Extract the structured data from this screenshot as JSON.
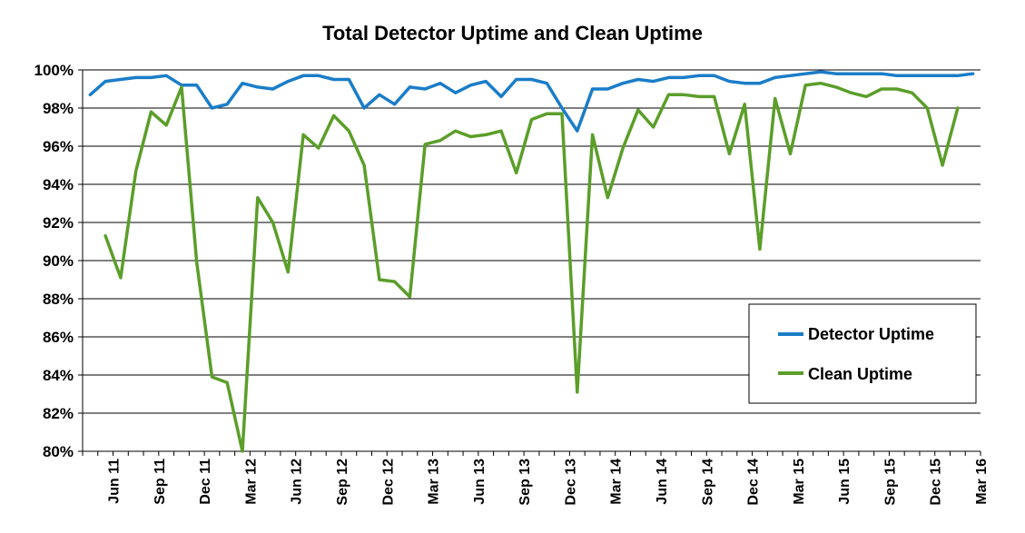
{
  "chart_data": {
    "type": "line",
    "title": "Total Detector Uptime and Clean Uptime",
    "xlabel": "",
    "ylabel": "",
    "ylim": [
      80,
      100
    ],
    "y_ticks": [
      "100%",
      "98%",
      "96%",
      "94%",
      "92%",
      "90%",
      "88%",
      "86%",
      "84%",
      "82%",
      "80%"
    ],
    "x_tick_labels": [
      "Jun 11",
      "Sep 11",
      "Dec 11",
      "Mar 12",
      "Jun 12",
      "Sep 12",
      "Dec 12",
      "Mar 13",
      "Jun 13",
      "Sep 13",
      "Dec 13",
      "Mar 14",
      "Jun 14",
      "Sep 14",
      "Dec 14",
      "Mar 15",
      "Jun 15",
      "Sep 15",
      "Dec 15",
      "Mar 16"
    ],
    "grid": true,
    "legend_position": "bottom-right",
    "series": [
      {
        "name": "Detector Uptime",
        "color": "#1a7dc8",
        "values": [
          98.7,
          99.4,
          99.5,
          99.6,
          99.6,
          99.7,
          99.2,
          99.2,
          98.0,
          98.2,
          99.3,
          99.1,
          99.0,
          99.4,
          99.7,
          99.7,
          99.5,
          99.5,
          98.0,
          98.7,
          98.2,
          99.1,
          99.0,
          99.3,
          98.8,
          99.2,
          99.4,
          98.6,
          99.5,
          99.5,
          99.3,
          98.0,
          96.8,
          99.0,
          99.0,
          99.3,
          99.5,
          99.4,
          99.6,
          99.6,
          99.7,
          99.7,
          99.4,
          99.3,
          99.3,
          99.6,
          99.7,
          99.8,
          99.9,
          99.8,
          99.8,
          99.8,
          99.8,
          99.7,
          99.7,
          99.7,
          99.7,
          99.7,
          99.8
        ]
      },
      {
        "name": "Clean Uptime",
        "color": "#5b9e2a",
        "values": [
          null,
          91.3,
          89.1,
          94.7,
          97.8,
          97.1,
          99.1,
          89.9,
          83.9,
          83.6,
          80.0,
          93.3,
          92.0,
          89.4,
          96.6,
          95.9,
          97.6,
          96.8,
          95.0,
          89.0,
          88.9,
          88.1,
          96.1,
          96.3,
          96.8,
          96.5,
          96.6,
          96.8,
          94.6,
          97.4,
          97.7,
          97.7,
          83.1,
          96.6,
          93.3,
          95.9,
          97.9,
          97.0,
          98.7,
          98.7,
          98.6,
          98.6,
          95.6,
          98.2,
          90.6,
          98.5,
          95.6,
          99.2,
          99.3,
          99.1,
          98.8,
          98.6,
          99.0,
          99.0,
          98.8,
          98.0,
          95.0,
          98.0
        ]
      }
    ]
  }
}
